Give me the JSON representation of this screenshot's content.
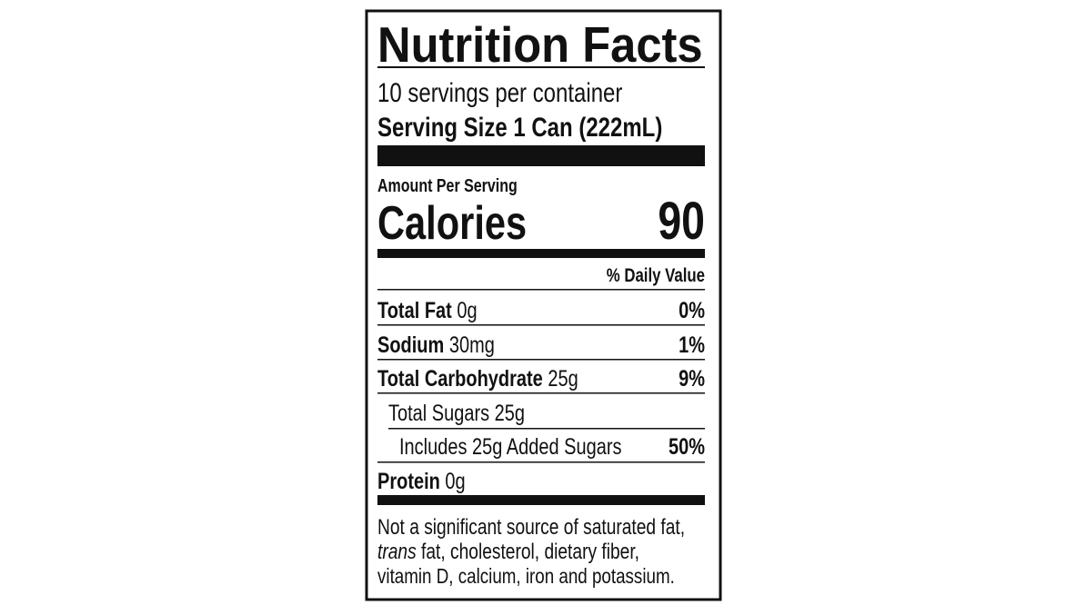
{
  "title": "Nutrition Facts",
  "servings": "10 servings per container",
  "serving_size": "Serving Size 1 Can (222mL)",
  "amount_per_serving": "Amount Per Serving",
  "calories": {
    "label": "Calories",
    "value": "90"
  },
  "daily_value_header": "% Daily Value",
  "nutrients": [
    {
      "name": "Total Fat",
      "amount": "0g",
      "dv": "0%"
    },
    {
      "name": "Sodium",
      "amount": "30mg",
      "dv": "1%"
    },
    {
      "name": "Total Carbohydrate",
      "amount": "25g",
      "dv": "9%"
    },
    {
      "name": "Total Sugars",
      "amount": "25g"
    },
    {
      "name": "Includes 25g Added Sugars",
      "dv": "50%"
    },
    {
      "name": "Protein",
      "amount": "0g"
    }
  ],
  "footnote": [
    "Not a significant source of saturated fat,",
    "trans",
    "fat, cholesterol, dietary fiber,",
    "vitamin D, calcium, iron and potassium."
  ]
}
